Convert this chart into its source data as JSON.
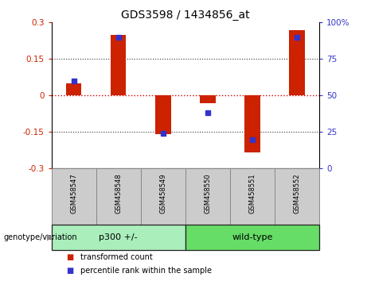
{
  "title": "GDS3598 / 1434856_at",
  "samples": [
    "GSM458547",
    "GSM458548",
    "GSM458549",
    "GSM458550",
    "GSM458551",
    "GSM458552"
  ],
  "red_values": [
    0.05,
    0.25,
    -0.16,
    -0.03,
    -0.235,
    0.27
  ],
  "blue_values_pct": [
    60,
    90,
    24,
    38,
    20,
    90
  ],
  "ylim_left": [
    -0.3,
    0.3
  ],
  "ylim_right": [
    0,
    100
  ],
  "yticks_left": [
    -0.3,
    -0.15,
    0,
    0.15,
    0.3
  ],
  "yticks_right": [
    0,
    25,
    50,
    75,
    100
  ],
  "ytick_labels_left": [
    "-0.3",
    "-0.15",
    "0",
    "0.15",
    "0.3"
  ],
  "ytick_labels_right": [
    "0",
    "25",
    "50",
    "75",
    "100%"
  ],
  "hlines": [
    0.15,
    -0.15
  ],
  "red_color": "#CC2200",
  "blue_color": "#3333CC",
  "zero_line_color": "#CC0000",
  "dotted_line_color": "#333333",
  "bar_width": 0.35,
  "blue_marker_size": 5,
  "groups": [
    {
      "label": "p300 +/-",
      "indices": [
        0,
        1,
        2
      ],
      "color": "#AAEEBB"
    },
    {
      "label": "wild-type",
      "indices": [
        3,
        4,
        5
      ],
      "color": "#66DD66"
    }
  ],
  "genotype_label": "genotype/variation",
  "legend_items": [
    {
      "label": "transformed count",
      "color": "#CC2200"
    },
    {
      "label": "percentile rank within the sample",
      "color": "#3333CC"
    }
  ],
  "bg_color": "#FFFFFF",
  "axis_label_color_left": "#CC2200",
  "axis_label_color_right": "#3333CC",
  "sample_box_color": "#CCCCCC",
  "sample_box_edge": "#888888"
}
